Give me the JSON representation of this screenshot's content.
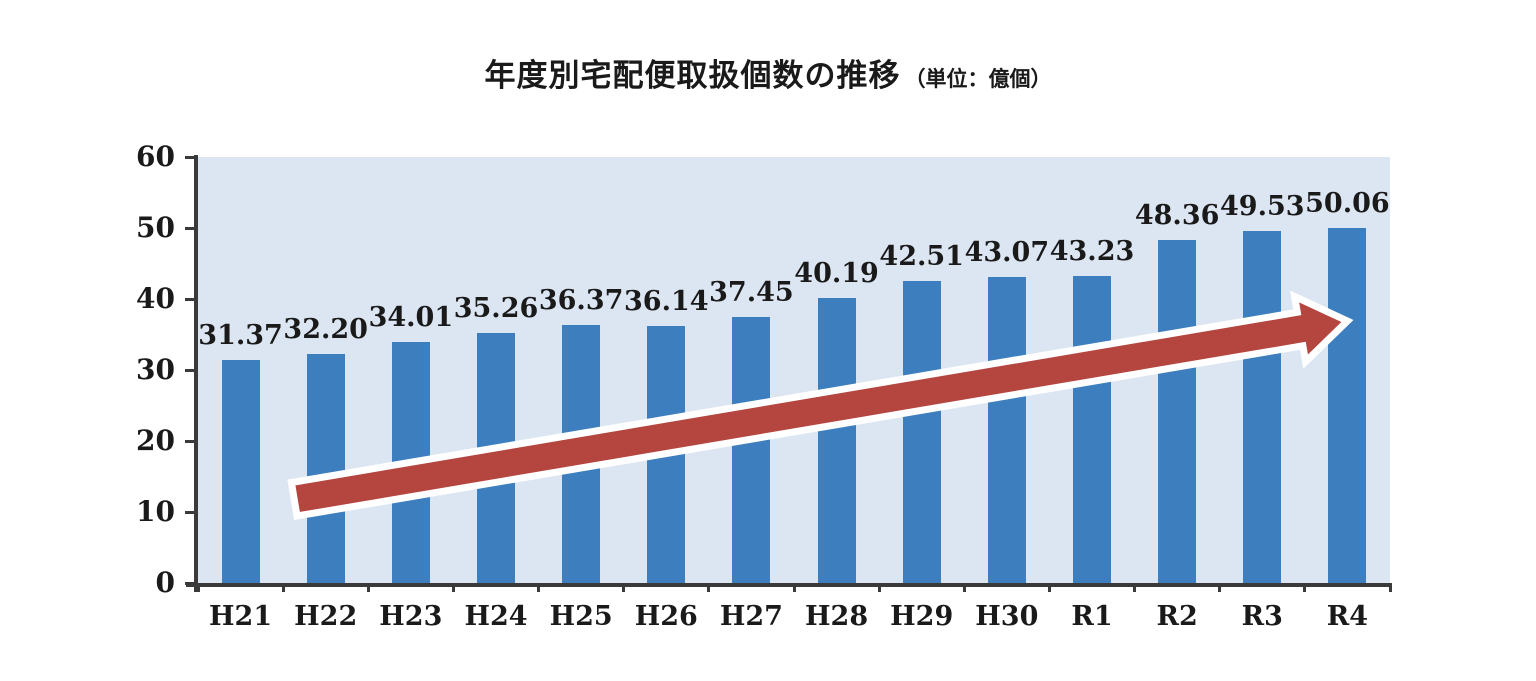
{
  "title": {
    "main": "年度別宅配便取扱個数の推移",
    "unit": "（単位：億個）"
  },
  "chart_data": {
    "type": "bar",
    "title": "年度別宅配便取扱個数の推移",
    "unit_note": "（単位：億個）",
    "categories": [
      "H21",
      "H22",
      "H23",
      "H24",
      "H25",
      "H26",
      "H27",
      "H28",
      "H29",
      "H30",
      "R1",
      "R2",
      "R3",
      "R4"
    ],
    "values": [
      31.37,
      32.2,
      34.01,
      35.26,
      36.37,
      36.14,
      37.45,
      40.19,
      42.51,
      43.07,
      43.23,
      48.36,
      49.53,
      50.06
    ],
    "value_labels": [
      "31.37",
      "32.20",
      "34.01",
      "35.26",
      "36.37",
      "36.14",
      "37.45",
      "40.19",
      "42.51",
      "43.07",
      "43.23",
      "48.36",
      "49.53",
      "50.06"
    ],
    "xlabel": "",
    "ylabel": "",
    "ylim": [
      0,
      60
    ],
    "yticks": [
      0,
      10,
      20,
      30,
      40,
      50,
      60
    ],
    "grid": false,
    "legend": "none",
    "colors": {
      "bar": "#3D7EBE",
      "plot_background": "#DCE6F2",
      "axis": "#3A3A3A",
      "text": "#1A1A1A"
    },
    "annotation": {
      "type": "trend-arrow",
      "fill": "#B4453F",
      "outline": "#FFFFFF",
      "from": {
        "category_index": 0.63,
        "value": 11.8
      },
      "to": {
        "category_index": 13.0,
        "value": 36.9
      }
    }
  }
}
